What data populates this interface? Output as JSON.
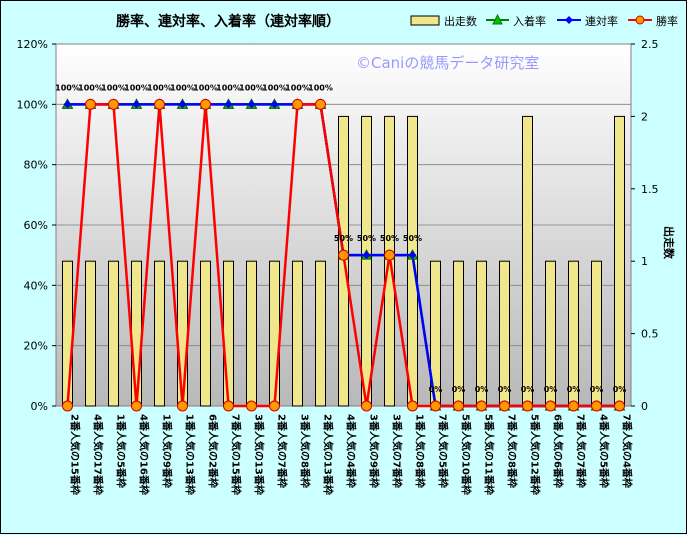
{
  "chart_data": {
    "type": "bar+line",
    "title": "勝率、連対率、入着率（連対率順）",
    "watermark": "©Caniの競馬データ研究室",
    "y2label": "出走数",
    "ylim": [
      0,
      1.2
    ],
    "y_ticks": [
      "0%",
      "20%",
      "40%",
      "60%",
      "80%",
      "100%",
      "120%"
    ],
    "y2lim": [
      0,
      2.5
    ],
    "y2_ticks": [
      "0",
      "0.5",
      "1",
      "1.5",
      "2",
      "2.5"
    ],
    "categories": [
      "2番人気の15番枠",
      "4番人気の17番枠",
      "1番人気の5番枠",
      "4番人気の16番枠",
      "1番人気の9番枠",
      "1番人気の13番枠",
      "6番人気の2番枠",
      "7番人気の15番枠",
      "3番人気の13番枠",
      "2番人気の7番枠",
      "3番人気の8番枠",
      "2番人気の13番枠",
      "4番人気の4番枠",
      "3番人気の9番枠",
      "3番人気の7番枠",
      "1番人気の8番枠",
      "7番人気の5番枠",
      "5番人気の10番枠",
      "5番人気の11番枠",
      "7番人気の8番枠",
      "5番人気の12番枠",
      "6番人気の6番枠",
      "7番人気の7番枠",
      "4番人気の5番枠",
      "7番人気の4番枠"
    ],
    "series": [
      {
        "name": "出走数",
        "type": "bar",
        "axis": "y2",
        "color": "#f0e68c",
        "values": [
          1,
          1,
          1,
          1,
          1,
          1,
          1,
          1,
          1,
          1,
          1,
          1,
          2,
          2,
          2,
          2,
          1,
          1,
          1,
          1,
          2,
          1,
          1,
          1,
          2
        ]
      },
      {
        "name": "入着率",
        "type": "line",
        "marker": "triangle",
        "color": "#008000",
        "values": [
          1,
          1,
          1,
          1,
          1,
          1,
          1,
          1,
          1,
          1,
          1,
          1,
          0.5,
          0.5,
          0.5,
          0.5,
          0,
          0,
          0,
          0,
          0,
          0,
          0,
          0,
          0
        ]
      },
      {
        "name": "連対率",
        "type": "line",
        "marker": "diamond",
        "color": "#0000ff",
        "values": [
          1,
          1,
          1,
          1,
          1,
          1,
          1,
          1,
          1,
          1,
          1,
          1,
          0.5,
          0.5,
          0.5,
          0.5,
          0,
          0,
          0,
          0,
          0,
          0,
          0,
          0,
          0
        ]
      },
      {
        "name": "勝率",
        "type": "line",
        "marker": "circle",
        "color": "#ff0000",
        "values": [
          0,
          1,
          1,
          0,
          1,
          0,
          1,
          0,
          0,
          0,
          1,
          1,
          0.5,
          0,
          0.5,
          0,
          0,
          0,
          0,
          0,
          0,
          0,
          0,
          0,
          0
        ]
      }
    ],
    "data_labels": [
      "100%",
      "100%",
      "100%",
      "100%",
      "100%",
      "100%",
      "100%",
      "100%",
      "100%",
      "100%",
      "100%",
      "100%",
      "50%",
      "50%",
      "50%",
      "50%",
      "0%",
      "0%",
      "0%",
      "0%",
      "0%",
      "0%",
      "0%",
      "0%",
      "0%"
    ]
  }
}
